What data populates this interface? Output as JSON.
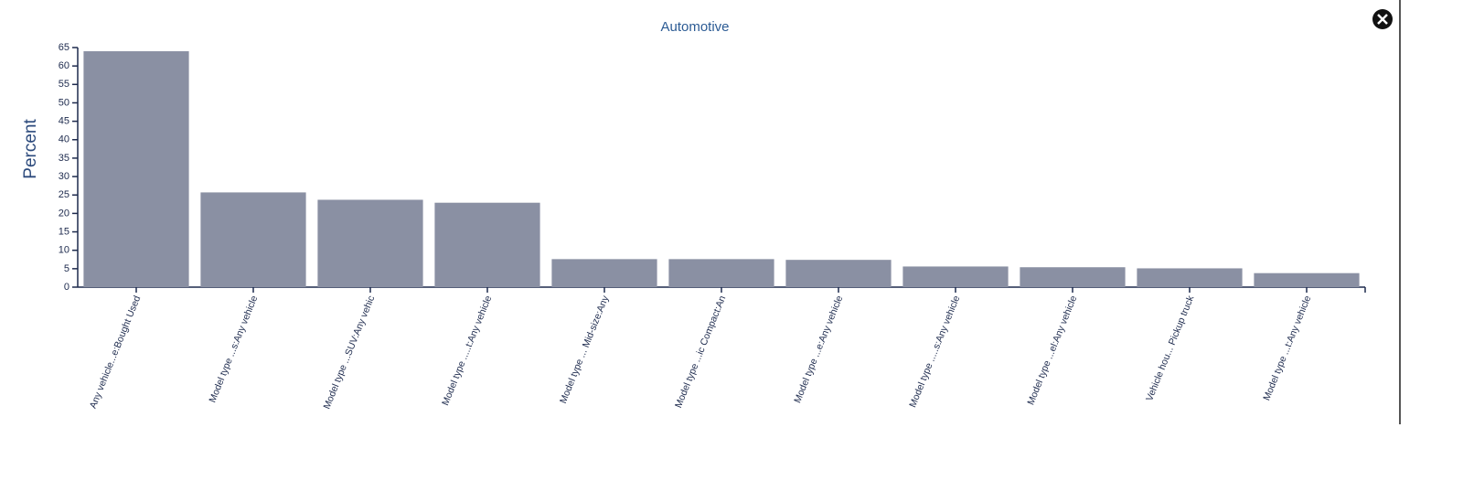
{
  "chart_data": {
    "type": "bar",
    "title": "Automotive",
    "y_label": "Percent",
    "categories": [
      "Any vehicle...e:Bought Used",
      "Model type ...s:Any vehicle",
      "Model type ...SUV:Any vehic",
      "Model type .....t:Any vehicle",
      "Model type ... Mid-size:Any",
      "Model type ...ic Compact:An",
      "Model type ...e:Any vehicle",
      "Model type .....s:Any vehicle",
      "Model type ...el:Any vehicle",
      "Vehicle hou... Pickup truck",
      "Model type ...t:Any vehicle"
    ],
    "values": [
      64.0,
      25.7,
      23.7,
      22.9,
      7.6,
      7.6,
      7.4,
      5.6,
      5.4,
      5.1,
      3.8
    ],
    "color": "#8a90a3",
    "ylim": [
      0,
      65
    ],
    "yticks": [
      0,
      5,
      10,
      15,
      20,
      25,
      30,
      35,
      40,
      45,
      50,
      55,
      60,
      65
    ],
    "grid": false
  }
}
